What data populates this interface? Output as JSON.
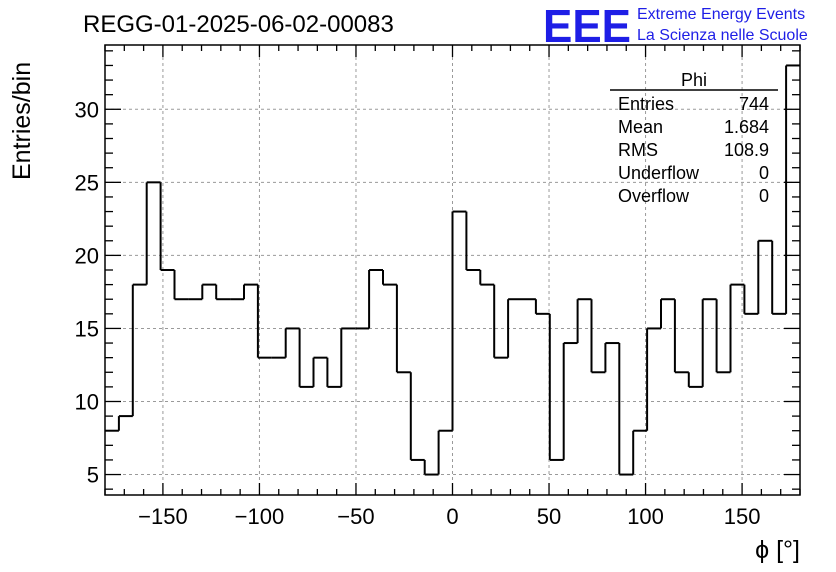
{
  "chart_data": {
    "type": "histogram",
    "title": "REGG-01-2025-06-02-00083",
    "xlabel": "ϕ [°]",
    "ylabel": "Entries/bin",
    "xlim": [
      -180,
      180
    ],
    "ylim": [
      3.6,
      34.4
    ],
    "xticks": [
      -150,
      -100,
      -50,
      0,
      50,
      100,
      150
    ],
    "xtick_labels": [
      "−150",
      "−100",
      "−50",
      "0",
      "50",
      "100",
      "150"
    ],
    "yticks": [
      5,
      10,
      15,
      20,
      25,
      30
    ],
    "ytick_labels": [
      "5",
      "10",
      "15",
      "20",
      "25",
      "30"
    ],
    "grid": true,
    "bin_width": 7.2,
    "bin_edges_start": -180,
    "values": [
      8,
      9,
      18,
      25,
      19,
      17,
      17,
      18,
      17,
      17,
      18,
      13,
      13,
      15,
      11,
      13,
      11,
      15,
      15,
      19,
      18,
      12,
      6,
      5,
      8,
      23,
      19,
      18,
      13,
      17,
      17,
      16,
      6,
      14,
      17,
      12,
      14,
      5,
      8,
      15,
      17,
      12,
      11,
      17,
      12,
      18,
      16,
      21,
      16,
      33
    ],
    "stats": {
      "name": "Phi",
      "rows": [
        {
          "label": "Entries",
          "value": "744"
        },
        {
          "label": "Mean",
          "value": "1.684"
        },
        {
          "label": "RMS",
          "value": "108.9"
        },
        {
          "label": "Underflow",
          "value": "0"
        },
        {
          "label": "Overflow",
          "value": "0"
        }
      ]
    }
  },
  "logo": {
    "mark": "EEE",
    "line1": "Extreme Energy Events",
    "line2": "La Scienza nelle Scuole",
    "color": "#1e1ee6"
  }
}
